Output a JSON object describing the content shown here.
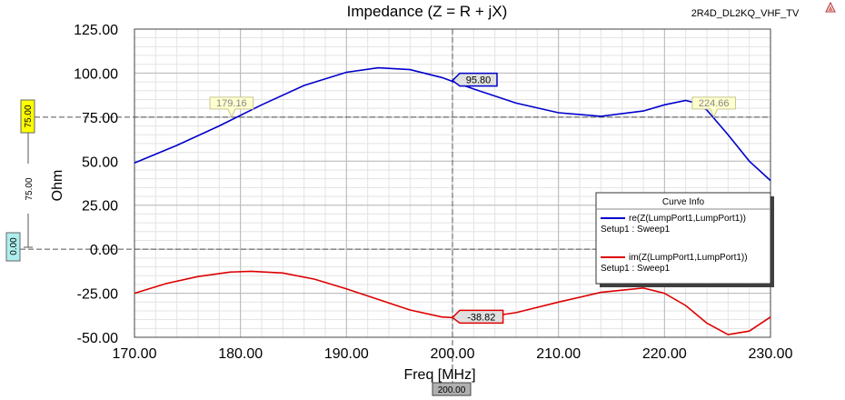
{
  "header": {
    "project": "2R4D_DL2KQ_VHF_TV"
  },
  "chart_data": {
    "type": "line",
    "title": "Impedance (Z = R + jX)",
    "xlabel": "Freq [MHz]",
    "ylabel": "Ohm",
    "xlim": [
      170,
      230
    ],
    "ylim": [
      -50,
      125
    ],
    "x_ticks": [
      "170.00",
      "180.00",
      "190.00",
      "200.00",
      "210.00",
      "220.00",
      "230.00"
    ],
    "y_ticks": [
      "125.00",
      "100.00",
      "75.00",
      "50.00",
      "25.00",
      "0.00",
      "-25.00",
      "-50.00"
    ],
    "grid": true,
    "legend": {
      "title": "Curve Info",
      "placement": "right"
    },
    "series": [
      {
        "name": "re(Z(LumpPort1,LumpPort1))",
        "setup": "Setup1 : Sweep1",
        "color": "#0000cc",
        "x": [
          170,
          174,
          178,
          182,
          186,
          190,
          193,
          196,
          199,
          202,
          206,
          210,
          214,
          218,
          220,
          222,
          223,
          224,
          226,
          228,
          230
        ],
        "y": [
          49,
          59,
          70,
          82,
          93,
          100.5,
          103,
          102,
          97.5,
          91,
          83,
          77.5,
          75.5,
          78.5,
          82,
          84.5,
          83,
          79,
          65,
          50,
          39
        ]
      },
      {
        "name": "im(Z(LumpPort1,LumpPort1))",
        "setup": "Setup1 : Sweep1",
        "color": "#dd0000",
        "x": [
          170,
          173,
          176,
          179,
          181,
          184,
          187,
          190,
          193,
          196,
          199,
          202,
          206,
          210,
          214,
          218,
          220,
          222,
          224,
          226,
          228,
          230
        ],
        "y": [
          -25,
          -19.5,
          -15.5,
          -13,
          -12.5,
          -13.5,
          -17,
          -22.5,
          -28.5,
          -34.5,
          -38.5,
          -39.5,
          -36,
          -30,
          -24.5,
          -22,
          -25,
          -32,
          -42,
          -48.5,
          -46.5,
          -38.5
        ]
      }
    ],
    "markers": [
      {
        "label": "95.80",
        "x": 200,
        "y": 95.8,
        "series": 0,
        "style": "selected"
      },
      {
        "label": "-38.82",
        "x": 200,
        "y": -38.82,
        "series": 1,
        "style": "selected"
      },
      {
        "label": "179.16",
        "x": 179.16,
        "y": 75,
        "style": "crossing"
      },
      {
        "label": "224.66",
        "x": 224.66,
        "y": 75,
        "style": "crossing"
      }
    ],
    "hlines": [
      {
        "value": 75,
        "label": "75.00",
        "color": "#ffff00"
      },
      {
        "value": 0,
        "label": "0.00",
        "color": "#aeeeee"
      }
    ],
    "delta_label": "75.00",
    "vline": {
      "value": 200,
      "label": "200.00"
    }
  }
}
